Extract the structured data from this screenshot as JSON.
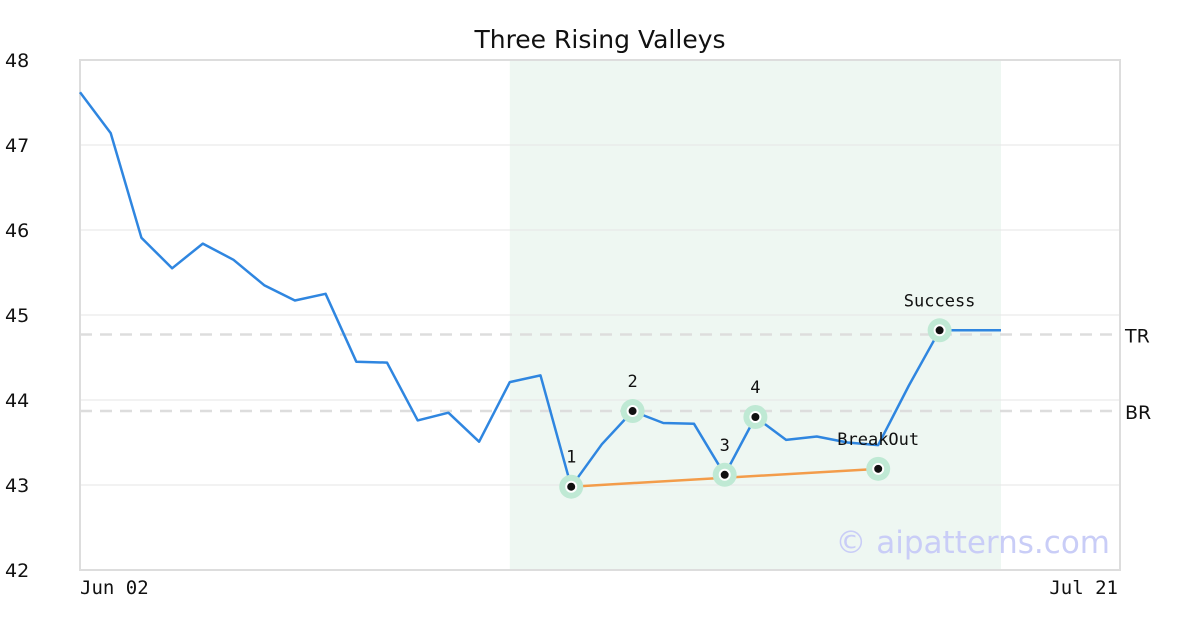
{
  "chart_data": {
    "type": "line",
    "title": "Three Rising Valleys",
    "ylim": [
      42,
      48
    ],
    "yticks": [
      "42",
      "43",
      "44",
      "45",
      "46",
      "47",
      "48"
    ],
    "x_start_label": "Jun 02",
    "x_end_label": "Jul 21",
    "grid": "horizontal",
    "colors": {
      "price": "#2f86e0",
      "trend": "#f39c4a",
      "highlight_region": "#eef7f2",
      "marker_halo": "#bfe9d4",
      "reference": "#dddddd",
      "frame": "#dddddd"
    },
    "series": [
      {
        "values": [
          47.62,
          47.14,
          45.91,
          45.55,
          45.84,
          45.65,
          45.35,
          45.17,
          45.25,
          44.45,
          44.44,
          43.76,
          43.85,
          43.51,
          44.21,
          44.29,
          42.98,
          43.48,
          43.87,
          43.73,
          43.72,
          43.12,
          43.8,
          43.53,
          43.57,
          43.5,
          43.47,
          44.17,
          44.82,
          44.82,
          44.82
        ]
      }
    ],
    "highlight_region": {
      "start_index": 14,
      "end_index": 30
    },
    "reference_lines": [
      {
        "label": "TR",
        "value": 44.77
      },
      {
        "label": "BR",
        "value": 43.87
      }
    ],
    "trend_line": {
      "from": {
        "index": 16,
        "value": 42.98
      },
      "to": {
        "index": 26,
        "value": 43.19
      }
    },
    "annotations": [
      {
        "label": "1",
        "index": 16,
        "value": 42.98,
        "position": "above"
      },
      {
        "label": "2",
        "index": 18,
        "value": 43.87,
        "position": "above"
      },
      {
        "label": "3",
        "index": 21,
        "value": 43.12,
        "position": "above"
      },
      {
        "label": "4",
        "index": 22,
        "value": 43.8,
        "position": "above"
      },
      {
        "label": "BreakOut",
        "index": 26,
        "value": 43.19,
        "position": "above"
      },
      {
        "label": "Success",
        "index": 28,
        "value": 44.82,
        "position": "above"
      }
    ],
    "watermark": "© aipatterns.com"
  }
}
